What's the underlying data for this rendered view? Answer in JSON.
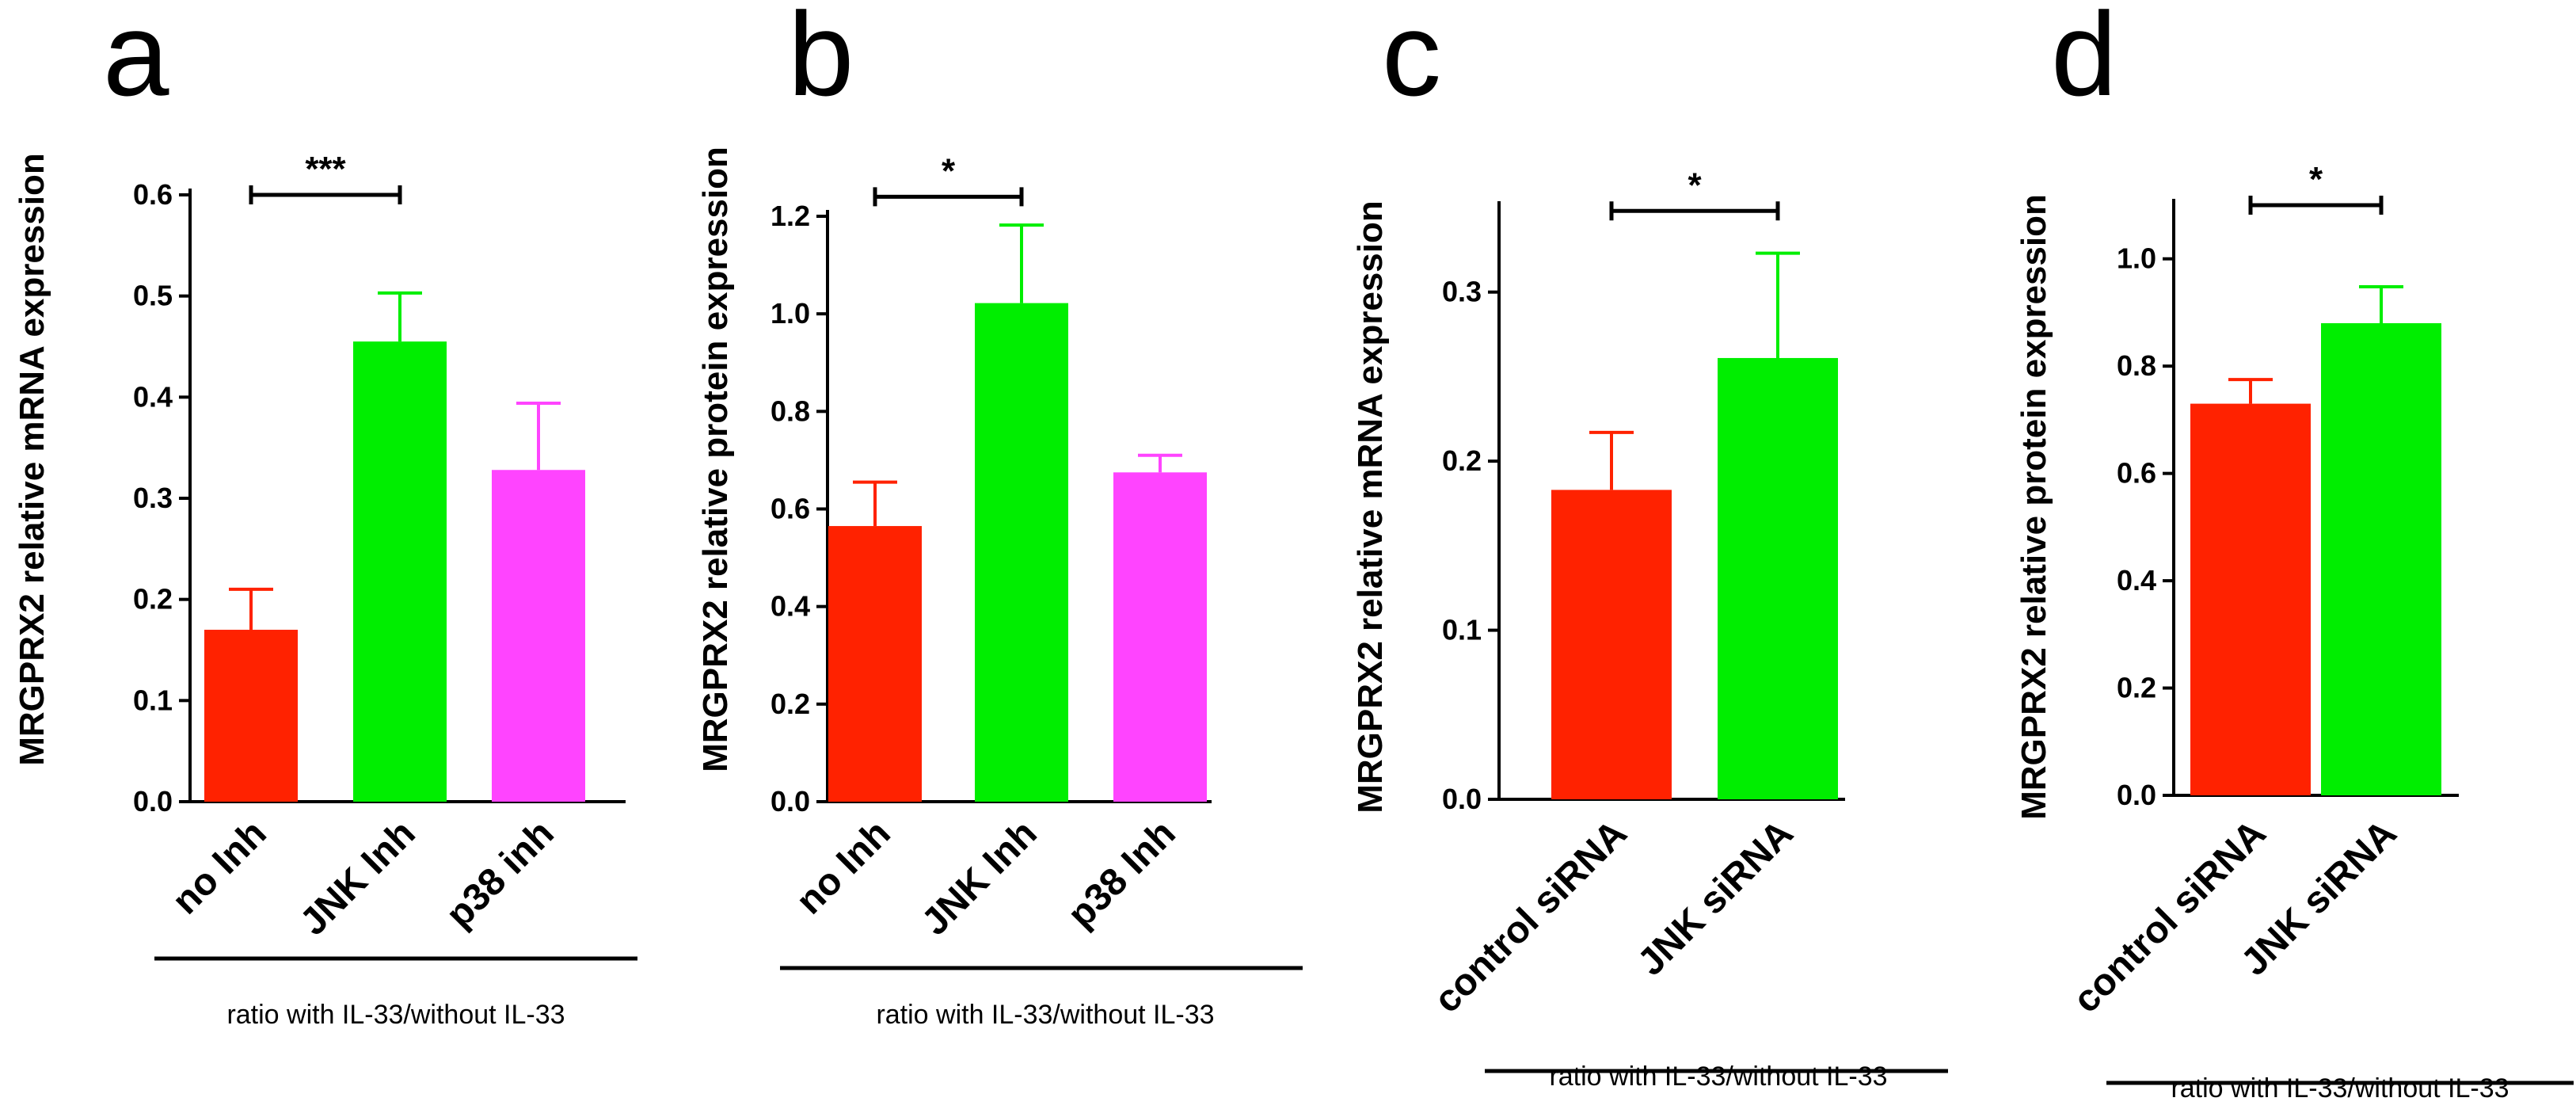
{
  "chart_data": [
    {
      "type": "bar",
      "panel": "a",
      "ylabel": "MRGPRX2 relative mRNA expression",
      "categories": [
        "no Inh",
        "JNK Inh",
        "p38 inh"
      ],
      "values": [
        0.17,
        0.455,
        0.328
      ],
      "errors": [
        0.04,
        0.048,
        0.066
      ],
      "colors": [
        "#ff2200",
        "#00ee00",
        "#ff44ff"
      ],
      "ylim": [
        0,
        0.6
      ],
      "yticks": [
        "0.0",
        "0.1",
        "0.2",
        "0.3",
        "0.4",
        "0.5",
        "0.6"
      ],
      "group_label": "ratio with IL-33/without IL-33",
      "significance": {
        "from": 0,
        "to": 1,
        "label": "***",
        "y": 0.6
      }
    },
    {
      "type": "bar",
      "panel": "b",
      "ylabel": "MRGPRX2 relative protein expression",
      "categories": [
        "no Inh",
        "JNK Inh",
        "p38 Inh"
      ],
      "values": [
        0.565,
        1.022,
        0.675
      ],
      "errors": [
        0.09,
        0.16,
        0.035
      ],
      "colors": [
        "#ff2200",
        "#00ee00",
        "#ff44ff"
      ],
      "ylim": [
        0,
        1.2
      ],
      "yticks": [
        "0.0",
        "0.2",
        "0.4",
        "0.6",
        "0.8",
        "1.0",
        "1.2"
      ],
      "group_label": "ratio with IL-33/without IL-33",
      "significance": {
        "from": 0,
        "to": 1,
        "label": "*",
        "y": 1.24
      }
    },
    {
      "type": "bar",
      "panel": "c",
      "ylabel": "MRGPRX2 relative mRNA expression",
      "categories": [
        "control siRNA",
        "JNK siRNA"
      ],
      "values": [
        0.183,
        0.261
      ],
      "errors": [
        0.034,
        0.062
      ],
      "colors": [
        "#ff2200",
        "#00ee00"
      ],
      "ylim": [
        0,
        0.35
      ],
      "yticks": [
        "0.0",
        "0.1",
        "0.2",
        "0.3"
      ],
      "group_label": "ratio with IL-33/without IL-33",
      "significance": {
        "from": 0,
        "to": 1,
        "label": "*",
        "y": 0.348
      }
    },
    {
      "type": "bar",
      "panel": "d",
      "ylabel": "MRGPRX2 relative protein expression",
      "categories": [
        "control siRNA",
        "JNK siRNA"
      ],
      "values": [
        0.73,
        0.88
      ],
      "errors": [
        0.045,
        0.068
      ],
      "colors": [
        "#ff2200",
        "#00ee00"
      ],
      "ylim": [
        0,
        1.1
      ],
      "yticks": [
        "0.0",
        "0.2",
        "0.4",
        "0.6",
        "0.8",
        "1.0"
      ],
      "group_label": "ratio with IL-33/without IL-33",
      "significance": {
        "from": 0,
        "to": 1,
        "label": "*",
        "y": 1.1
      }
    }
  ]
}
